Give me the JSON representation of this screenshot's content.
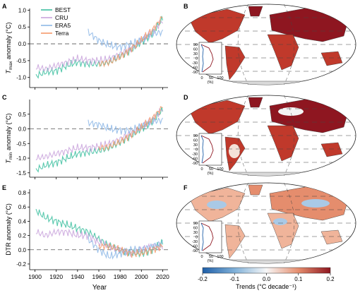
{
  "figure": {
    "panel_letters": {
      "A": "A",
      "B": "B",
      "C": "C",
      "D": "D",
      "E": "E",
      "F": "F"
    },
    "x_axis": {
      "title": "Year",
      "ticks": [
        "1900",
        "1920",
        "1940",
        "1960",
        "1980",
        "2000",
        "2020"
      ]
    },
    "legend": [
      {
        "label": "BEST",
        "color": "#3dbfa0"
      },
      {
        "label": "CRU",
        "color": "#c9a3dc"
      },
      {
        "label": "ERA5",
        "color": "#8db7e6"
      },
      {
        "label": "Terra",
        "color": "#f59a6b"
      }
    ],
    "colorbar": {
      "ticks": [
        "-0.2",
        "-0.1",
        "0.0",
        "0.1",
        "0.2"
      ],
      "label": "Trends (°C decade⁻¹)",
      "colors": [
        "#1f5fa8",
        "#7fb0d8",
        "#f7f7f7",
        "#e58d6d",
        "#8e1620"
      ]
    },
    "inset": {
      "y_ticks": [
        "90",
        "60",
        "30",
        "0",
        "-30",
        "-60",
        "-90"
      ],
      "x_ticks": [
        "0",
        "50",
        "100"
      ],
      "x_unit": "(%)"
    }
  },
  "chart_data": [
    {
      "type": "line",
      "panel": "A",
      "ylabel_main": "T",
      "ylabel_sub": "max",
      "ylabel_rest": " anomaly (°C)",
      "xlim": [
        1895,
        2025
      ],
      "ylim": [
        -1.3,
        1.05
      ],
      "yticks": [
        "1.0",
        "0.5",
        "0.0",
        "-0.5",
        "-1.0"
      ],
      "ytick_values": [
        1.0,
        0.5,
        0.0,
        -0.5,
        -1.0
      ],
      "series": [
        {
          "name": "BEST",
          "x": [
            1901,
            1910,
            1920,
            1930,
            1940,
            1950,
            1960,
            1970,
            1980,
            1990,
            2000,
            2010,
            2020
          ],
          "y": [
            -0.95,
            -0.85,
            -0.8,
            -0.65,
            -0.55,
            -0.6,
            -0.6,
            -0.55,
            -0.35,
            -0.2,
            0.05,
            0.3,
            0.75
          ]
        },
        {
          "name": "CRU",
          "x": [
            1901,
            1910,
            1920,
            1930,
            1940,
            1950,
            1960,
            1970,
            1980,
            1990,
            2000,
            2010,
            2020
          ],
          "y": [
            -0.7,
            -0.75,
            -0.65,
            -0.55,
            -0.45,
            -0.5,
            -0.5,
            -0.45,
            -0.3,
            -0.15,
            0.1,
            0.35,
            0.7
          ]
        },
        {
          "name": "ERA5",
          "x": [
            1950,
            1960,
            1970,
            1980,
            1990,
            2000,
            2010,
            2020
          ],
          "y": [
            0.35,
            0.1,
            -0.05,
            -0.1,
            0.0,
            0.1,
            0.3,
            0.35
          ]
        },
        {
          "name": "Terra",
          "x": [
            1960,
            1970,
            1980,
            1990,
            2000,
            2010,
            2020
          ],
          "y": [
            -0.6,
            -0.55,
            -0.4,
            -0.15,
            0.1,
            0.4,
            0.8
          ]
        }
      ]
    },
    {
      "type": "line",
      "panel": "C",
      "ylabel_main": "T",
      "ylabel_sub": "min",
      "ylabel_rest": " anomaly (°C)",
      "xlim": [
        1895,
        2025
      ],
      "ylim": [
        -1.65,
        1.0
      ],
      "yticks": [
        "0.5",
        "0.0",
        "-0.5",
        "-1.0",
        "-1.5"
      ],
      "ytick_values": [
        0.5,
        0.0,
        -0.5,
        -1.0,
        -1.5
      ],
      "series": [
        {
          "name": "BEST",
          "x": [
            1901,
            1910,
            1920,
            1930,
            1940,
            1950,
            1960,
            1970,
            1980,
            1990,
            2000,
            2010,
            2020
          ],
          "y": [
            -1.4,
            -1.25,
            -1.15,
            -1.0,
            -0.85,
            -0.8,
            -0.75,
            -0.65,
            -0.45,
            -0.25,
            0.0,
            0.25,
            0.65
          ]
        },
        {
          "name": "CRU",
          "x": [
            1901,
            1910,
            1920,
            1930,
            1940,
            1950,
            1960,
            1970,
            1980,
            1990,
            2000,
            2010,
            2020
          ],
          "y": [
            -1.0,
            -0.95,
            -0.85,
            -0.75,
            -0.65,
            -0.65,
            -0.6,
            -0.5,
            -0.35,
            -0.15,
            0.05,
            0.3,
            0.7
          ]
        },
        {
          "name": "ERA5",
          "x": [
            1950,
            1960,
            1970,
            1980,
            1990,
            2000,
            2010,
            2020
          ],
          "y": [
            0.2,
            0.15,
            0.0,
            -0.05,
            -0.05,
            0.1,
            0.25,
            0.3
          ]
        },
        {
          "name": "Terra",
          "x": [
            1960,
            1970,
            1980,
            1990,
            2000,
            2010,
            2020
          ],
          "y": [
            -0.65,
            -0.6,
            -0.45,
            -0.2,
            0.05,
            0.35,
            0.75
          ]
        }
      ]
    },
    {
      "type": "line",
      "panel": "E",
      "ylabel_main": "DTR anomaly (°C)",
      "xlim": [
        1895,
        2025
      ],
      "ylim": [
        -0.28,
        0.85
      ],
      "yticks": [
        "0.8",
        "0.6",
        "0.4",
        "0.2",
        "0.0",
        "-0.2"
      ],
      "ytick_values": [
        0.8,
        0.6,
        0.4,
        0.2,
        0.0,
        -0.2
      ],
      "series": [
        {
          "name": "BEST",
          "x": [
            1901,
            1910,
            1920,
            1930,
            1940,
            1950,
            1960,
            1970,
            1980,
            1990,
            2000,
            2010,
            2020
          ],
          "y": [
            0.55,
            0.45,
            0.4,
            0.35,
            0.3,
            0.25,
            0.15,
            0.05,
            0.0,
            -0.05,
            -0.05,
            0.0,
            0.1
          ]
        },
        {
          "name": "CRU",
          "x": [
            1901,
            1910,
            1920,
            1930,
            1940,
            1950,
            1960,
            1970,
            1980,
            1990,
            2000,
            2010,
            2020
          ],
          "y": [
            0.25,
            0.2,
            0.25,
            0.25,
            0.2,
            0.2,
            0.1,
            0.05,
            0.0,
            -0.05,
            0.0,
            0.05,
            0.05
          ]
        },
        {
          "name": "ERA5",
          "x": [
            1950,
            1960,
            1970,
            1980,
            1990,
            2000,
            2010,
            2020
          ],
          "y": [
            0.15,
            0.0,
            -0.1,
            -0.05,
            0.0,
            0.0,
            0.05,
            0.1
          ]
        },
        {
          "name": "Terra",
          "x": [
            1960,
            1970,
            1980,
            1990,
            2000,
            2010,
            2020
          ],
          "y": [
            0.05,
            0.05,
            0.0,
            -0.05,
            -0.05,
            0.0,
            0.05
          ]
        }
      ]
    },
    {
      "type": "heatmap",
      "panel": "B",
      "description_values": "warming trends map"
    },
    {
      "type": "heatmap",
      "panel": "D",
      "description_values": "warming trends map"
    },
    {
      "type": "heatmap",
      "panel": "F",
      "description_values": "DTR trends map"
    }
  ]
}
